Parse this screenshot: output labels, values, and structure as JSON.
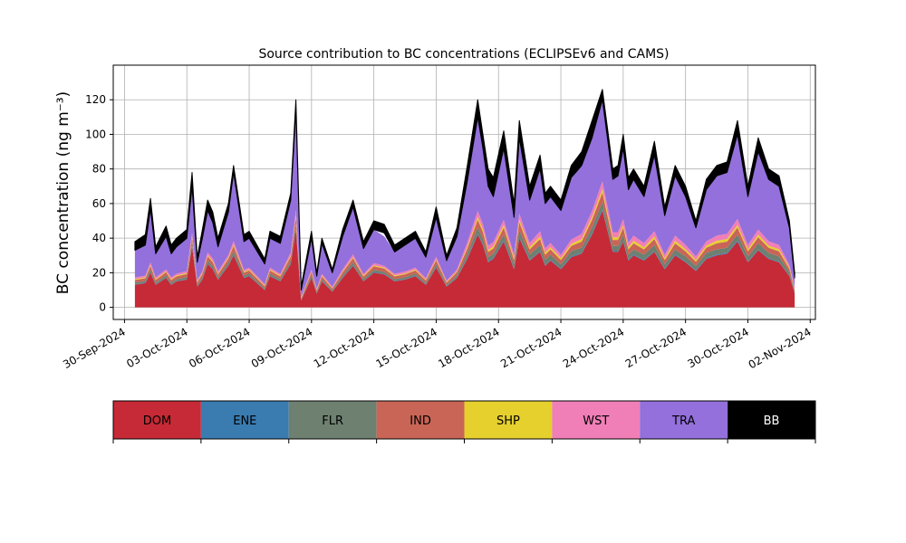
{
  "chart_data": {
    "type": "area",
    "title": "Source contribution to BC concentrations (ECLIPSEv6 and CAMS)",
    "ylabel": "BC concentration (ng m⁻³)",
    "xlabel": "",
    "xlim": [
      "2024-09-29T11:00",
      "2024-11-02T06:00"
    ],
    "ylim": [
      -7,
      140
    ],
    "yticks": [
      0,
      20,
      40,
      60,
      80,
      100,
      120
    ],
    "xticks": [
      "30-Sep-2024",
      "03-Oct-2024",
      "06-Oct-2024",
      "09-Oct-2024",
      "12-Oct-2024",
      "15-Oct-2024",
      "18-Oct-2024",
      "21-Oct-2024",
      "24-Oct-2024",
      "27-Oct-2024",
      "30-Oct-2024",
      "02-Nov-2024"
    ],
    "grid": true,
    "stacked": true,
    "x": [
      "2024-09-30T12:00",
      "2024-10-01T00:00",
      "2024-10-01T06:00",
      "2024-10-01T12:00",
      "2024-10-02T00:00",
      "2024-10-02T06:00",
      "2024-10-02T12:00",
      "2024-10-03T00:00",
      "2024-10-03T06:00",
      "2024-10-03T12:00",
      "2024-10-03T18:00",
      "2024-10-04T00:00",
      "2024-10-04T06:00",
      "2024-10-04T12:00",
      "2024-10-05T00:00",
      "2024-10-05T06:00",
      "2024-10-05T18:00",
      "2024-10-06T00:00",
      "2024-10-06T18:00",
      "2024-10-07T00:00",
      "2024-10-07T12:00",
      "2024-10-08T00:00",
      "2024-10-08T06:00",
      "2024-10-08T12:00",
      "2024-10-09T00:00",
      "2024-10-09T06:00",
      "2024-10-09T12:00",
      "2024-10-10T00:00",
      "2024-10-10T12:00",
      "2024-10-11T00:00",
      "2024-10-11T12:00",
      "2024-10-12T00:00",
      "2024-10-12T12:00",
      "2024-10-13T00:00",
      "2024-10-13T12:00",
      "2024-10-14T00:00",
      "2024-10-14T12:00",
      "2024-10-15T00:00",
      "2024-10-15T12:00",
      "2024-10-16T00:00",
      "2024-10-16T12:00",
      "2024-10-17T00:00",
      "2024-10-17T06:00",
      "2024-10-17T12:00",
      "2024-10-17T18:00",
      "2024-10-18T06:00",
      "2024-10-18T18:00",
      "2024-10-19T00:00",
      "2024-10-19T12:00",
      "2024-10-20T00:00",
      "2024-10-20T06:00",
      "2024-10-20T12:00",
      "2024-10-21T00:00",
      "2024-10-21T12:00",
      "2024-10-22T00:00",
      "2024-10-22T12:00",
      "2024-10-23T00:00",
      "2024-10-23T12:00",
      "2024-10-23T18:00",
      "2024-10-24T00:00",
      "2024-10-24T06:00",
      "2024-10-24T12:00",
      "2024-10-25T00:00",
      "2024-10-25T12:00",
      "2024-10-26T00:00",
      "2024-10-26T12:00",
      "2024-10-27T00:00",
      "2024-10-27T12:00",
      "2024-10-28T00:00",
      "2024-10-28T12:00",
      "2024-10-29T00:00",
      "2024-10-29T12:00",
      "2024-10-30T00:00",
      "2024-10-30T12:00",
      "2024-10-31T00:00",
      "2024-10-31T12:00",
      "2024-11-01T00:00",
      "2024-11-01T06:00"
    ],
    "total_upper": [
      38,
      42,
      63,
      35,
      47,
      36,
      40,
      45,
      78,
      29,
      45,
      62,
      55,
      40,
      60,
      82,
      42,
      44,
      28,
      44,
      41,
      66,
      120,
      12,
      44,
      20,
      40,
      22,
      45,
      62,
      38,
      50,
      48,
      36,
      40,
      44,
      32,
      58,
      30,
      46,
      82,
      120,
      100,
      80,
      75,
      102,
      60,
      108,
      70,
      88,
      66,
      70,
      62,
      82,
      90,
      108,
      126,
      80,
      82,
      100,
      75,
      80,
      70,
      96,
      58,
      82,
      70,
      50,
      74,
      82,
      84,
      108,
      70,
      98,
      80,
      76,
      50,
      20
    ],
    "total_lower": [
      33,
      36,
      57,
      31,
      41,
      31,
      35,
      40,
      70,
      26,
      40,
      56,
      49,
      35,
      55,
      78,
      38,
      40,
      25,
      40,
      37,
      62,
      114,
      10,
      40,
      18,
      37,
      20,
      41,
      58,
      34,
      45,
      43,
      32,
      36,
      40,
      29,
      52,
      27,
      41,
      73,
      110,
      92,
      70,
      64,
      92,
      52,
      98,
      62,
      80,
      60,
      64,
      56,
      75,
      82,
      98,
      120,
      74,
      76,
      92,
      68,
      74,
      64,
      88,
      53,
      76,
      64,
      46,
      68,
      76,
      78,
      100,
      64,
      90,
      74,
      70,
      46,
      17
    ],
    "series": [
      {
        "name": "DOM",
        "values": [
          13,
          14,
          20,
          13,
          17,
          13,
          15,
          16,
          35,
          12,
          16,
          25,
          22,
          16,
          24,
          30,
          17,
          18,
          10,
          18,
          15,
          25,
          45,
          4,
          17,
          8,
          15,
          9,
          17,
          24,
          15,
          20,
          19,
          15,
          16,
          18,
          13,
          23,
          12,
          17,
          28,
          42,
          36,
          26,
          28,
          38,
          22,
          40,
          27,
          32,
          24,
          27,
          22,
          29,
          31,
          42,
          56,
          32,
          32,
          38,
          27,
          30,
          27,
          32,
          22,
          30,
          26,
          21,
          28,
          30,
          31,
          38,
          26,
          33,
          28,
          26,
          18,
          8
        ]
      },
      {
        "name": "ENE",
        "values": [
          0.3,
          0.3,
          0.4,
          0.3,
          0.3,
          0.3,
          0.3,
          0.3,
          0.5,
          0.3,
          0.3,
          0.4,
          0.4,
          0.3,
          0.4,
          0.5,
          0.3,
          0.3,
          0.2,
          0.3,
          0.3,
          0.4,
          0.7,
          0.1,
          0.3,
          0.2,
          0.3,
          0.2,
          0.3,
          0.4,
          0.3,
          0.4,
          0.3,
          0.3,
          0.3,
          0.3,
          0.3,
          0.4,
          0.2,
          0.3,
          0.5,
          0.7,
          0.6,
          0.5,
          0.5,
          0.6,
          0.4,
          0.7,
          0.5,
          0.5,
          0.4,
          0.5,
          0.4,
          0.5,
          0.5,
          0.7,
          0.9,
          0.5,
          0.5,
          0.6,
          0.5,
          0.5,
          0.5,
          0.5,
          0.4,
          0.5,
          0.4,
          0.4,
          0.5,
          0.5,
          0.5,
          0.6,
          0.4,
          0.5,
          0.5,
          0.4,
          0.3,
          0.2
        ]
      },
      {
        "name": "FLR",
        "values": [
          1,
          1,
          1.5,
          1,
          1.2,
          1,
          1,
          1.2,
          2,
          0.8,
          1.2,
          1.6,
          1.5,
          1.1,
          1.5,
          2,
          1.1,
          1.2,
          0.8,
          1.2,
          1,
          1.6,
          2.5,
          0.5,
          1.2,
          0.7,
          1,
          0.7,
          1.2,
          1.6,
          1,
          1.3,
          1.2,
          1,
          1.1,
          1.2,
          0.9,
          1.5,
          0.8,
          1.2,
          2.5,
          3.5,
          3,
          2.5,
          2.5,
          3.5,
          2.5,
          4,
          3,
          3.5,
          3,
          3,
          2.5,
          3,
          3,
          3.5,
          4,
          3,
          3,
          3.5,
          3,
          3,
          3,
          3.5,
          2.5,
          3,
          3,
          2.5,
          3,
          3,
          3,
          3.5,
          3,
          3.5,
          3,
          3,
          2,
          1
        ]
      },
      {
        "name": "IND",
        "values": [
          1.5,
          1.5,
          2,
          1.5,
          1.8,
          1.5,
          1.6,
          1.8,
          3,
          1.3,
          1.8,
          2.5,
          2.2,
          1.7,
          2.3,
          3,
          1.7,
          1.8,
          1.2,
          1.8,
          1.6,
          2.5,
          4,
          0.7,
          1.8,
          1,
          1.6,
          1,
          1.8,
          2.4,
          1.5,
          2,
          1.9,
          1.6,
          1.7,
          1.8,
          1.4,
          2.3,
          1.3,
          1.8,
          3,
          4.5,
          4,
          3,
          3,
          4,
          2.5,
          4.5,
          3,
          3.5,
          3,
          3,
          2.5,
          3,
          3.5,
          4.5,
          5.5,
          3.5,
          3.5,
          4,
          3,
          3.5,
          3,
          3.5,
          2.5,
          3.5,
          3,
          2.5,
          3,
          3.5,
          3.5,
          4,
          3,
          3.5,
          3,
          3,
          2,
          1
        ]
      },
      {
        "name": "SHP",
        "values": [
          0.5,
          0.5,
          0.6,
          0.5,
          0.5,
          0.5,
          0.5,
          0.5,
          0.7,
          0.4,
          0.5,
          0.6,
          0.6,
          0.5,
          0.6,
          0.8,
          0.5,
          0.5,
          0.4,
          0.5,
          0.5,
          0.6,
          1,
          0.3,
          0.5,
          0.3,
          0.5,
          0.3,
          0.5,
          0.6,
          0.5,
          0.6,
          0.5,
          0.5,
          0.5,
          0.5,
          0.4,
          0.6,
          0.4,
          0.5,
          1,
          1.5,
          1.5,
          1.2,
          1.2,
          1.5,
          1,
          1.5,
          1.2,
          1.5,
          1.2,
          1.2,
          1,
          1.2,
          1.5,
          1.5,
          2,
          1.5,
          1.5,
          1.5,
          1.2,
          1.5,
          1.2,
          1.5,
          1,
          1.5,
          1.2,
          1,
          1.2,
          1.5,
          1.5,
          1.5,
          1.2,
          1.5,
          1.2,
          1.2,
          0.8,
          0.5
        ]
      },
      {
        "name": "WST",
        "values": [
          1,
          1,
          1.5,
          1,
          1.2,
          1,
          1,
          1.2,
          2,
          0.8,
          1.2,
          1.6,
          1.5,
          1.1,
          1.5,
          2,
          1.1,
          1.2,
          0.8,
          1.2,
          1,
          1.6,
          3,
          0.5,
          1.2,
          0.7,
          1,
          0.7,
          1.2,
          1.6,
          1,
          1.3,
          1.2,
          1,
          1.1,
          1.2,
          0.9,
          1.5,
          0.8,
          1.2,
          2.5,
          3.5,
          3,
          2.5,
          2.5,
          3,
          2,
          3.5,
          2.5,
          3,
          2.5,
          2.5,
          2,
          2.5,
          3,
          3.5,
          4.5,
          3,
          3,
          3.5,
          2.5,
          3,
          2.5,
          3,
          2,
          3,
          2.5,
          2,
          2.5,
          3,
          3,
          3.5,
          2.5,
          3,
          2.5,
          2.5,
          1.5,
          1
        ]
      },
      {
        "name": "TRA",
        "values": [
          15.7,
          17.7,
          31,
          13.7,
          18.8,
          13.7,
          15.6,
          19,
          26.8,
          10.4,
          19,
          24.3,
          20.8,
          14.3,
          24.7,
          39.7,
          17.3,
          17,
          11.6,
          17,
          17.6,
          30.3,
          57.8,
          3.9,
          18,
          7.1,
          17.6,
          8.1,
          19,
          27.4,
          14.7,
          19.4,
          16.9,
          12.6,
          15.3,
          17,
          12.1,
          22.7,
          11.5,
          19,
          35.5,
          54.3,
          43.9,
          34.3,
          26.3,
          41.4,
          21.6,
          43.8,
          24.8,
          35,
          25.9,
          26.8,
          25.6,
          35.3,
          39.5,
          42.3,
          47.1,
          30.5,
          32.5,
          40.9,
          30.8,
          32.5,
          26.8,
          43.5,
          22.6,
          34.5,
          27.9,
          16.6,
          29.8,
          34.5,
          35.5,
          49,
          27.9,
          44.5,
          35.8,
          33.9,
          21.4,
          5.3
        ]
      },
      {
        "name": "BB",
        "values": [
          5,
          6,
          6,
          4,
          6,
          5,
          5,
          5,
          8,
          3,
          5,
          6,
          6,
          5,
          5,
          4,
          4,
          4,
          3,
          4,
          4,
          4,
          6,
          2,
          4,
          2,
          3,
          2,
          4,
          4,
          4,
          5,
          5,
          4,
          4,
          4,
          3,
          6,
          3,
          5,
          9,
          10,
          8,
          10,
          11,
          10,
          8,
          10,
          8,
          8,
          6,
          6,
          6,
          7,
          8,
          10,
          6,
          6,
          6,
          8,
          7,
          6,
          6,
          8,
          5,
          6,
          6,
          4,
          6,
          6,
          6,
          8,
          6,
          8,
          6,
          6,
          4,
          3
        ]
      }
    ],
    "legend": {
      "placement": "below",
      "entries": [
        "DOM",
        "ENE",
        "FLR",
        "IND",
        "SHP",
        "WST",
        "TRA",
        "BB"
      ]
    },
    "colors": {
      "DOM": "#c62a36",
      "ENE": "#3a7bb0",
      "FLR": "#6e8070",
      "IND": "#c96556",
      "SHP": "#e6d02e",
      "WST": "#f07fb8",
      "TRA": "#9370db",
      "BB": "#000000"
    }
  }
}
